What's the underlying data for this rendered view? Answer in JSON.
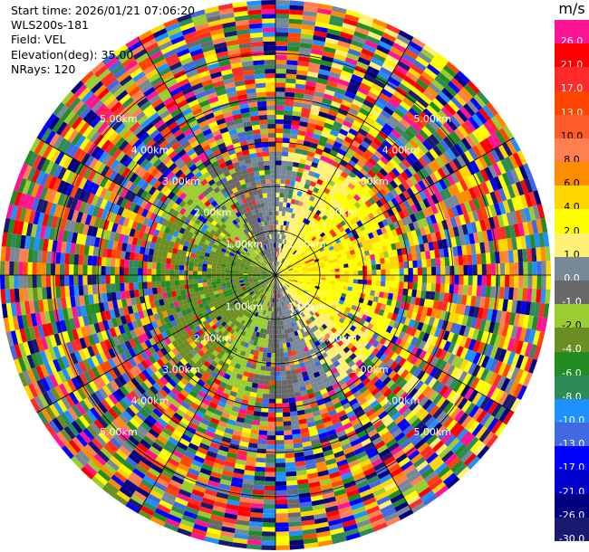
{
  "header": {
    "start_time": "Start time: 2026/01/21 07:06:20",
    "instrument": "WLS200s-181",
    "field": "Field: VEL",
    "elevation": "Elevation(deg): 35.00",
    "nrays": "NRays: 120"
  },
  "colorbar": {
    "unit": "m/s",
    "bins": [
      {
        "label": "26.0",
        "color": "#ff1493"
      },
      {
        "label": "21.0",
        "color": "#ff0000"
      },
      {
        "label": "17.0",
        "color": "#ff2a2a"
      },
      {
        "label": "13.0",
        "color": "#ff4500"
      },
      {
        "label": "10.0",
        "color": "#ff5a2a"
      },
      {
        "label": "8.0",
        "color": "#ff7f50"
      },
      {
        "label": "6.0",
        "color": "#ff8c00"
      },
      {
        "label": "4.0",
        "color": "#ffd700"
      },
      {
        "label": "2.0",
        "color": "#ffff00"
      },
      {
        "label": "1.0",
        "color": "#fff176"
      },
      {
        "label": "0.0",
        "color": "#778899"
      },
      {
        "label": "-1.0",
        "color": "#696969"
      },
      {
        "label": "-2.0",
        "color": "#9acd32"
      },
      {
        "label": "-4.0",
        "color": "#6b8e23"
      },
      {
        "label": "-6.0",
        "color": "#228b22"
      },
      {
        "label": "-8.0",
        "color": "#2e8b57"
      },
      {
        "label": "-10.0",
        "color": "#1e90ff"
      },
      {
        "label": "-13.0",
        "color": "#4169e1"
      },
      {
        "label": "-17.0",
        "color": "#0000ff"
      },
      {
        "label": "-21.0",
        "color": "#0000cd"
      },
      {
        "label": "-26.0",
        "color": "#000080"
      },
      {
        "label": "-30.0",
        "color": "#191970"
      }
    ]
  },
  "chart_data": {
    "type": "heatmap",
    "projection": "polar-ppi",
    "field": "VEL",
    "units": "m/s",
    "elevation_deg": 35.0,
    "n_rays": 120,
    "value_range": [
      -30.0,
      30.0
    ],
    "range_rings_km": [
      1,
      2,
      3,
      4,
      5
    ],
    "range_ring_labels": [
      "1.00km",
      "2.00km",
      "3.00km",
      "4.00km",
      "5.00km"
    ],
    "pattern": "dipole near center: positive velocities east, negative velocities west; noisy values at longer ranges"
  }
}
